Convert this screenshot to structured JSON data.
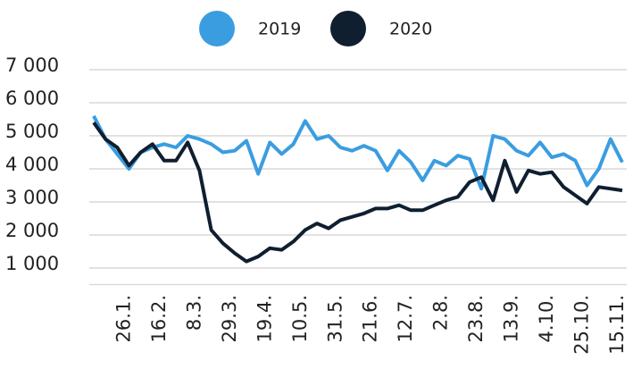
{
  "chart_data": {
    "type": "line",
    "categories": [
      null,
      null,
      null,
      "26.1.",
      null,
      null,
      "16.2.",
      null,
      null,
      "8.3.",
      null,
      null,
      "29.3.",
      null,
      null,
      "19.4.",
      null,
      null,
      "10.5.",
      null,
      null,
      "31.5.",
      null,
      null,
      "21.6.",
      null,
      null,
      "12.7.",
      null,
      null,
      "2.8.",
      null,
      null,
      "23.8.",
      null,
      null,
      "13.9.",
      null,
      null,
      "4.10.",
      null,
      null,
      "25.10.",
      null,
      null,
      "15.11."
    ],
    "series": [
      {
        "name": "2019",
        "color": "#3a9de0",
        "values": [
          5600,
          4900,
          4450,
          4000,
          4500,
          4650,
          4750,
          4650,
          5000,
          4900,
          4750,
          4500,
          4550,
          4850,
          3850,
          4800,
          4450,
          4750,
          5450,
          4900,
          5000,
          4650,
          4550,
          4700,
          4550,
          3950,
          4550,
          4200,
          3650,
          4250,
          4100,
          4400,
          4300,
          3400,
          5000,
          4900,
          4550,
          4400,
          4800,
          4350,
          4450,
          4250,
          3500,
          4000,
          4900,
          4200
        ]
      },
      {
        "name": "2020",
        "color": "#0f1f30",
        "values": [
          5400,
          4900,
          4650,
          4100,
          4500,
          4750,
          4250,
          4250,
          4800,
          3950,
          2150,
          1750,
          1450,
          1200,
          1350,
          1600,
          1550,
          1800,
          2150,
          2350,
          2200,
          2450,
          2550,
          2650,
          2800,
          2800,
          2900,
          2750,
          2750,
          2900,
          3050,
          3150,
          3600,
          3750,
          3050,
          4250,
          3300,
          3950,
          3850,
          3900,
          3450,
          3200,
          2950,
          3450,
          3400,
          3350
        ]
      }
    ],
    "ylim": [
      500,
      7000
    ],
    "yticks": [
      {
        "value": 1000,
        "label": "1 000"
      },
      {
        "value": 2000,
        "label": "2 000"
      },
      {
        "value": 3000,
        "label": "3 000"
      },
      {
        "value": 4000,
        "label": "4 000"
      },
      {
        "value": 5000,
        "label": "5 000"
      },
      {
        "value": 6000,
        "label": "6 000"
      },
      {
        "value": 7000,
        "label": "7 000"
      }
    ],
    "grid": true,
    "legend": "top"
  }
}
